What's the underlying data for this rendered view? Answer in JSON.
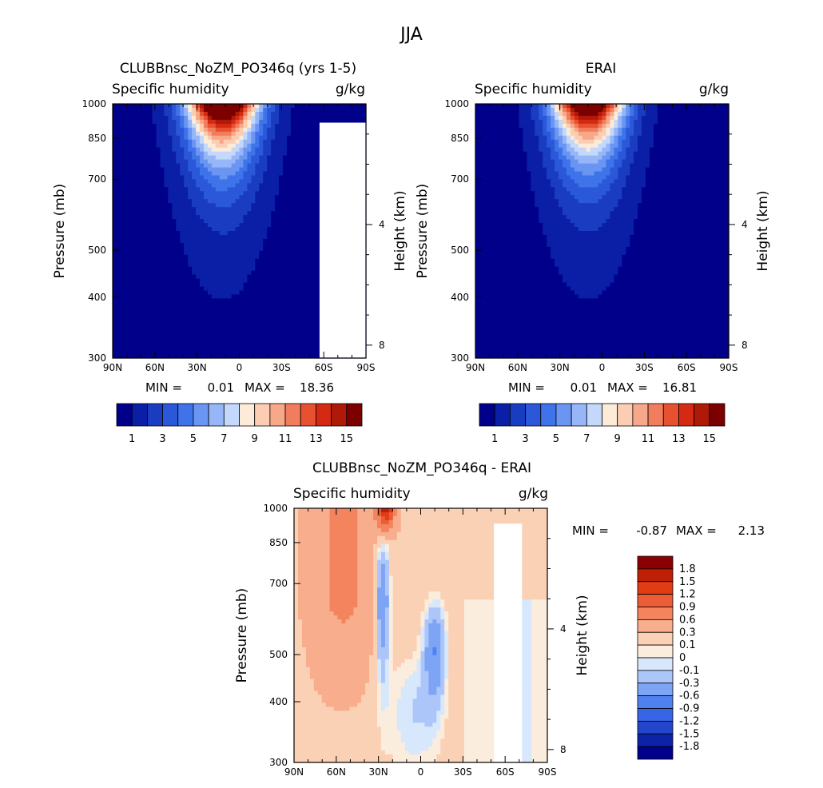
{
  "figure": {
    "title": "JJA"
  },
  "colors": {
    "q_levels": [
      "#00008b",
      "#0a1fa6",
      "#1a3cc0",
      "#2a58d8",
      "#3f73ea",
      "#6a95f2",
      "#96b6f7",
      "#c4d8fb",
      "#fbebd8",
      "#fbcdb2",
      "#f8a88a",
      "#f27d5c",
      "#e8512f",
      "#d42a13",
      "#ae1a07",
      "#7d0000"
    ],
    "diff_levels": [
      "#00008b",
      "#0c23a8",
      "#2446cc",
      "#3765e6",
      "#4f82f0",
      "#7ea4f5",
      "#acc6fa",
      "#d7e7fc",
      "#fbeddd",
      "#fbd1b6",
      "#f8ad8d",
      "#f4845e",
      "#ec5c35",
      "#e23c14",
      "#bd1f07",
      "#8b0000"
    ]
  },
  "chart_data": [
    {
      "type": "heatmap",
      "title": "CLUBBnsc_NoZM_PO346q (yrs 1-5)",
      "subtitle_left": "Specific humidity",
      "subtitle_right": "g/kg",
      "ylabel": "Pressure (mb)",
      "ylabel_right": "Height (km)",
      "x_ticks": [
        "90N",
        "60N",
        "30N",
        "0",
        "30S",
        "60S",
        "90S"
      ],
      "x_values": [
        90,
        60,
        30,
        0,
        -30,
        -60,
        -90
      ],
      "y_ticks": [
        "300",
        "400",
        "500",
        "700",
        "850",
        "1000"
      ],
      "y_values": [
        300,
        400,
        500,
        700,
        850,
        1000
      ],
      "right_ticks": [
        "8",
        "4"
      ],
      "right_values": [
        8,
        4
      ],
      "xlim": [
        90,
        -90
      ],
      "ylim": [
        1000,
        300
      ],
      "y_scale": "log",
      "min_label": "MIN =",
      "min_value": "0.01",
      "max_label": "MAX =",
      "max_value": "18.36",
      "colorbar_labels": [
        "1",
        "3",
        "5",
        "7",
        "9",
        "11",
        "13",
        "15"
      ],
      "colorbar_values": [
        1,
        3,
        5,
        7,
        9,
        11,
        13,
        15
      ],
      "peak_lat": 12,
      "peak_value": 18.36
    },
    {
      "type": "heatmap",
      "title": "ERAI",
      "subtitle_left": "Specific humidity",
      "subtitle_right": "g/kg",
      "ylabel": "Pressure (mb)",
      "ylabel_right": "Height (km)",
      "x_ticks": [
        "90N",
        "60N",
        "30N",
        "0",
        "30S",
        "60S",
        "90S"
      ],
      "x_values": [
        90,
        60,
        30,
        0,
        -30,
        -60,
        -90
      ],
      "y_ticks": [
        "300",
        "400",
        "500",
        "700",
        "850",
        "1000"
      ],
      "y_values": [
        300,
        400,
        500,
        700,
        850,
        1000
      ],
      "right_ticks": [
        "8",
        "4"
      ],
      "right_values": [
        8,
        4
      ],
      "xlim": [
        90,
        -90
      ],
      "ylim": [
        1000,
        300
      ],
      "y_scale": "log",
      "min_label": "MIN =",
      "min_value": "0.01",
      "max_label": "MAX =",
      "max_value": "16.81",
      "colorbar_labels": [
        "1",
        "3",
        "5",
        "7",
        "9",
        "11",
        "13",
        "15"
      ],
      "colorbar_values": [
        1,
        3,
        5,
        7,
        9,
        11,
        13,
        15
      ],
      "peak_lat": 10,
      "peak_value": 16.81
    },
    {
      "type": "heatmap",
      "title": "CLUBBnsc_NoZM_PO346q - ERAI",
      "subtitle_left": "Specific humidity",
      "subtitle_right": "g/kg",
      "ylabel": "Pressure (mb)",
      "ylabel_right": "Height (km)",
      "x_ticks": [
        "90N",
        "60N",
        "30N",
        "0",
        "30S",
        "60S",
        "90S"
      ],
      "x_values": [
        90,
        60,
        30,
        0,
        -30,
        -60,
        -90
      ],
      "y_ticks": [
        "300",
        "400",
        "500",
        "700",
        "850",
        "1000"
      ],
      "y_values": [
        300,
        400,
        500,
        700,
        850,
        1000
      ],
      "right_ticks": [
        "8",
        "4"
      ],
      "right_values": [
        8,
        4
      ],
      "xlim": [
        90,
        -90
      ],
      "ylim": [
        1000,
        300
      ],
      "y_scale": "log",
      "min_label": "MIN =",
      "min_value": "-0.87",
      "max_label": "MAX =",
      "max_value": "2.13",
      "colorbar_labels": [
        "1.8",
        "1.5",
        "1.2",
        "0.9",
        "0.6",
        "0.3",
        "0.1",
        "0",
        "-0.1",
        "-0.3",
        "-0.6",
        "-0.9",
        "-1.2",
        "-1.5",
        "-1.8"
      ],
      "colorbar_values": [
        1.8,
        1.5,
        1.2,
        0.9,
        0.6,
        0.3,
        0.1,
        0,
        -0.1,
        -0.3,
        -0.6,
        -0.9,
        -1.2,
        -1.5,
        -1.8
      ]
    }
  ]
}
